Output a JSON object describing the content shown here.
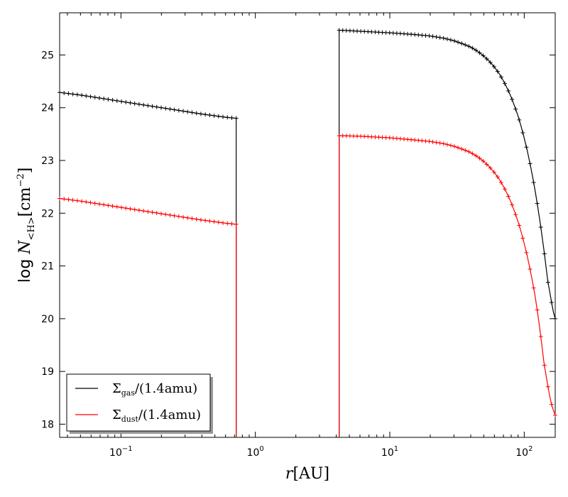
{
  "chart_data": {
    "type": "line",
    "title": "",
    "xlabel": {
      "main": "r",
      "unit": "[AU]"
    },
    "ylabel": {
      "prefix": "log ",
      "var": "N",
      "sub": "<H>",
      "unit": "[cm",
      "exp": "−2",
      "close": "]"
    },
    "xscale": "log",
    "xlim": [
      0.035,
      170
    ],
    "ylim": [
      17.75,
      25.8
    ],
    "yticks": [
      "18",
      "19",
      "20",
      "21",
      "22",
      "23",
      "24",
      "25"
    ],
    "xticks": [
      {
        "base": "10",
        "exp": "−1",
        "value": 0.1
      },
      {
        "base": "10",
        "exp": "0",
        "value": 1
      },
      {
        "base": "10",
        "exp": "1",
        "value": 10
      },
      {
        "base": "10",
        "exp": "2",
        "value": 100
      }
    ],
    "grid": false,
    "legend_position": "lower-left",
    "series": [
      {
        "name": {
          "sym": "Σ",
          "sub": "gas",
          "rest": "/(1.4amu)"
        },
        "color": "#000000",
        "segments": [
          {
            "x": [
              0.035,
              0.05,
              0.1,
              0.2,
              0.4,
              0.6,
              0.72
            ],
            "y": [
              24.29,
              24.24,
              24.12,
              24.0,
              23.88,
              23.82,
              23.8
            ]
          },
          {
            "x": [
              4.2,
              6,
              10,
              15,
              20,
              25,
              30,
              35,
              40,
              45,
              50,
              55,
              60,
              65,
              70,
              75,
              80,
              85,
              90,
              95,
              100,
              105,
              110,
              115,
              120,
              125,
              130,
              135,
              140,
              145,
              150,
              155,
              160,
              165,
              170
            ],
            "y": [
              25.47,
              25.45,
              25.42,
              25.39,
              25.36,
              25.32,
              25.27,
              25.21,
              25.15,
              25.07,
              24.98,
              24.88,
              24.77,
              24.65,
              24.51,
              24.36,
              24.2,
              24.02,
              23.84,
              23.64,
              23.42,
              23.2,
              22.96,
              22.71,
              22.45,
              22.18,
              21.9,
              21.61,
              21.31,
              21.0,
              20.7,
              20.5,
              20.3,
              20.12,
              20.0
            ]
          }
        ]
      },
      {
        "name": {
          "sym": "Σ",
          "sub": "dust",
          "rest": "/(1.4amu)"
        },
        "color": "#ff0000",
        "segments": [
          {
            "x": [
              0.035,
              0.05,
              0.1,
              0.2,
              0.4,
              0.6,
              0.72
            ],
            "y": [
              22.28,
              22.23,
              22.11,
              21.99,
              21.87,
              21.81,
              21.79
            ]
          },
          {
            "x": [
              4.2,
              6,
              10,
              15,
              20,
              25,
              30,
              35,
              40,
              45,
              50,
              55,
              60,
              65,
              70,
              75,
              80,
              85,
              90,
              95,
              100,
              105,
              110,
              115,
              120,
              125,
              130,
              135,
              140,
              145,
              150,
              155,
              160,
              165,
              170
            ],
            "y": [
              23.47,
              23.46,
              23.43,
              23.39,
              23.36,
              23.32,
              23.27,
              23.21,
              23.15,
              23.07,
              22.98,
              22.88,
              22.77,
              22.65,
              22.51,
              22.36,
              22.2,
              22.02,
              21.84,
              21.64,
              21.42,
              21.2,
              20.96,
              20.71,
              20.45,
              20.16,
              19.85,
              19.52,
              19.18,
              18.94,
              18.72,
              18.52,
              18.37,
              18.26,
              18.17
            ]
          }
        ]
      }
    ]
  }
}
